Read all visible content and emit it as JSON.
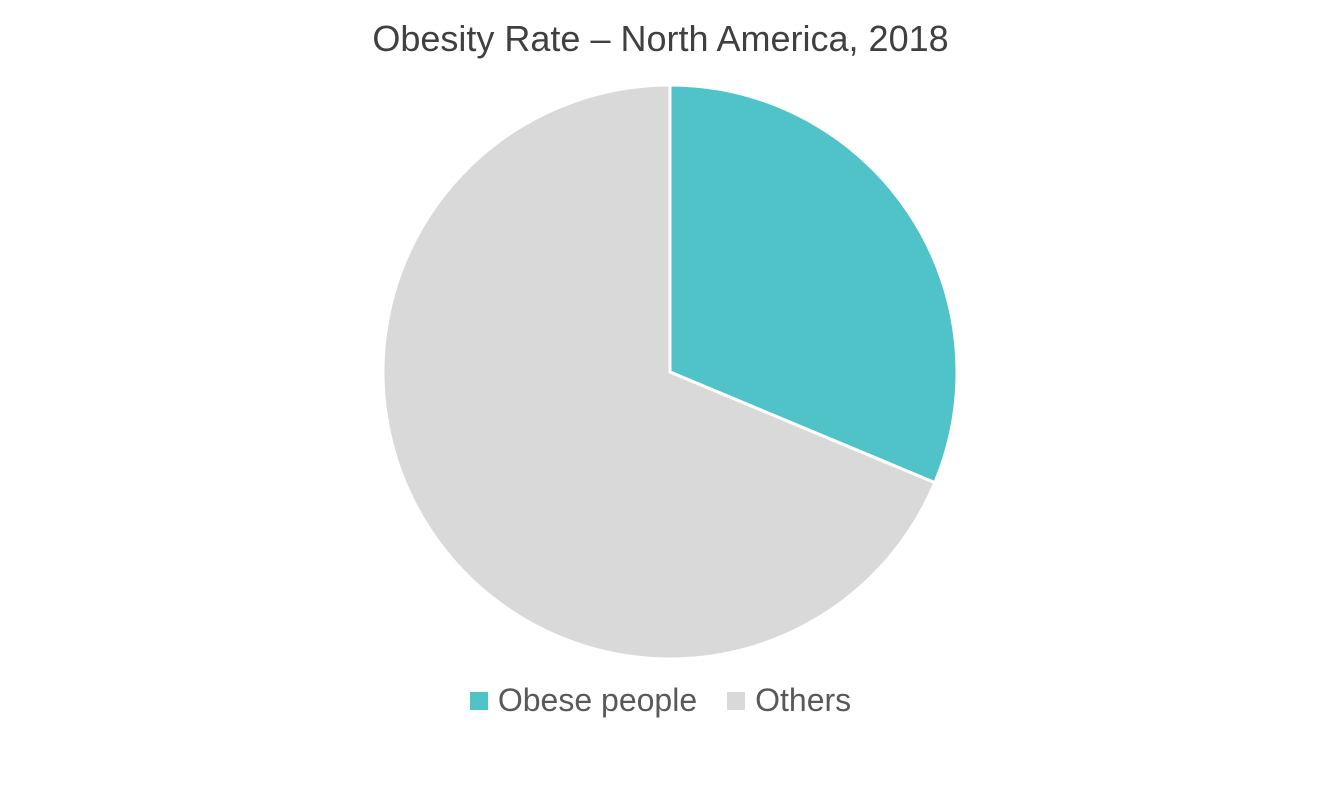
{
  "chart_data": {
    "type": "pie",
    "title": "Obesity Rate – North America, 2018",
    "slices": [
      {
        "label": "Obese people",
        "value": 31.3,
        "color": "#4FC3C8"
      },
      {
        "label": "Others",
        "value": 68.7,
        "color": "#D9D9D9"
      }
    ],
    "start_angle_deg": 0,
    "direction": "clockwise",
    "legend_position": "bottom"
  }
}
